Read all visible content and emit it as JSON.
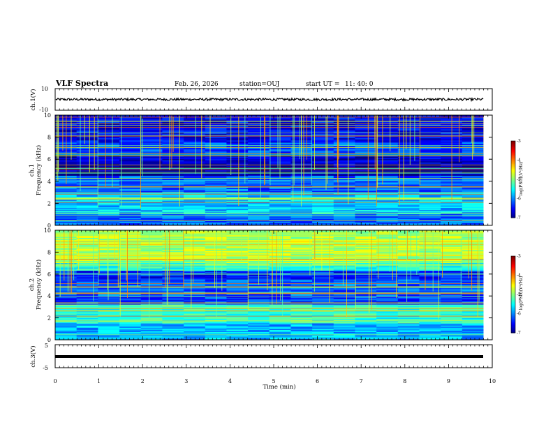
{
  "header": {
    "title": "VLF Spectra",
    "date": "Feb. 26, 2026",
    "station": "station=OUJ",
    "start_label": "start  UT  =",
    "start_time": "11: 40: 0"
  },
  "chart_data": [
    {
      "type": "line",
      "name": "ch1-waveform",
      "ylabel": "ch.1(V)",
      "ylim": [
        -10,
        10
      ],
      "yticks": [
        "10",
        "-10"
      ],
      "xlim": [
        0,
        10
      ],
      "description_level": 0
    },
    {
      "type": "heatmap",
      "name": "ch1-spectrogram",
      "ylabel_line1": "ch.1",
      "ylabel_line2": "Frequency (kHz)",
      "ylim": [
        0,
        10
      ],
      "yticks": [
        "0",
        "2",
        "4",
        "6",
        "8",
        "10"
      ],
      "xlim": [
        0,
        10
      ],
      "data_end_min": 9.8,
      "colorbar": {
        "label": "log(PSD)(V²/Hz)",
        "range": [
          -7,
          -3
        ],
        "ticks": [
          "-3",
          "-4",
          "-5",
          "-6",
          "-7"
        ]
      }
    },
    {
      "type": "heatmap",
      "name": "ch2-spectrogram",
      "ylabel_line1": "ch.2",
      "ylabel_line2": "Frequency (kHz)",
      "ylim": [
        0,
        10
      ],
      "yticks": [
        "0",
        "2",
        "4",
        "6",
        "8",
        "10"
      ],
      "xlim": [
        0,
        10
      ],
      "data_end_min": 9.8,
      "colorbar": {
        "label": "log(PSD)(V²/Hz)",
        "range": [
          -7,
          -3
        ],
        "ticks": [
          "-3",
          "-4",
          "-5",
          "-6",
          "-7"
        ]
      }
    },
    {
      "type": "line",
      "name": "ch3-waveform",
      "ylabel": "ch.3(V)",
      "ylim": [
        -5,
        5
      ],
      "yticks": [
        "5",
        "-5"
      ],
      "xlim": [
        0,
        10
      ],
      "description_level": -0.8
    }
  ],
  "xaxis": {
    "label": "Time  (min)",
    "ticks": [
      "0",
      "1",
      "2",
      "3",
      "4",
      "5",
      "6",
      "7",
      "8",
      "9",
      "10"
    ]
  },
  "colors": {
    "colormap": [
      "#00007f",
      "#0000ff",
      "#007fff",
      "#00ffff",
      "#7fff7f",
      "#ffff00",
      "#ff7f00",
      "#ff0000",
      "#ffffff"
    ]
  }
}
